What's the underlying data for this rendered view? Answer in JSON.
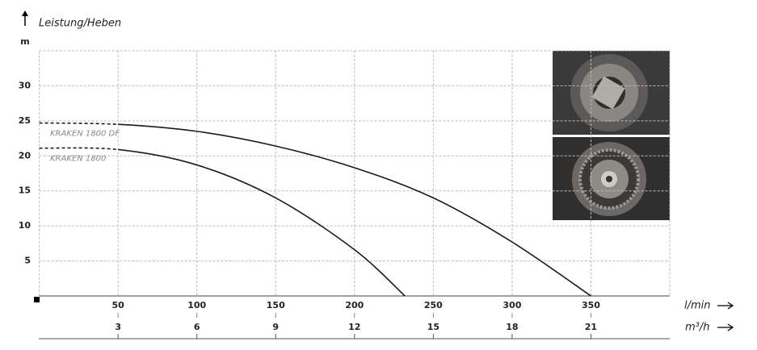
{
  "chart_data": {
    "type": "line",
    "y_axis_label": "Leistung/Heben",
    "y_unit": "m",
    "x_axis_label": "l/min",
    "x2_axis_label": "m³/h",
    "ylim": [
      0,
      35
    ],
    "yticks": [
      5,
      10,
      15,
      20,
      25,
      30
    ],
    "xlim": [
      0,
      400
    ],
    "xticks": [
      50,
      100,
      150,
      200,
      250,
      300,
      350
    ],
    "x2lim": [
      0,
      24
    ],
    "x2ticks": [
      3,
      6,
      9,
      12,
      15,
      18,
      21
    ],
    "grid": true,
    "series": [
      {
        "name": "KRAKEN 1800 DF",
        "color": "#1a1a1a",
        "dashed_segments": [
          0
        ],
        "x": [
          0,
          50,
          100,
          150,
          200,
          250,
          300,
          350
        ],
        "values": [
          24.7,
          24.5,
          23.5,
          21.4,
          18.3,
          14.0,
          7.7,
          0
        ]
      },
      {
        "name": "KRAKEN 1800",
        "color": "#1a1a1a",
        "dashed_segments": [
          0
        ],
        "x": [
          0,
          50,
          100,
          150,
          200,
          232
        ],
        "values": [
          21.1,
          20.9,
          18.7,
          14.0,
          6.6,
          0
        ]
      }
    ]
  }
}
